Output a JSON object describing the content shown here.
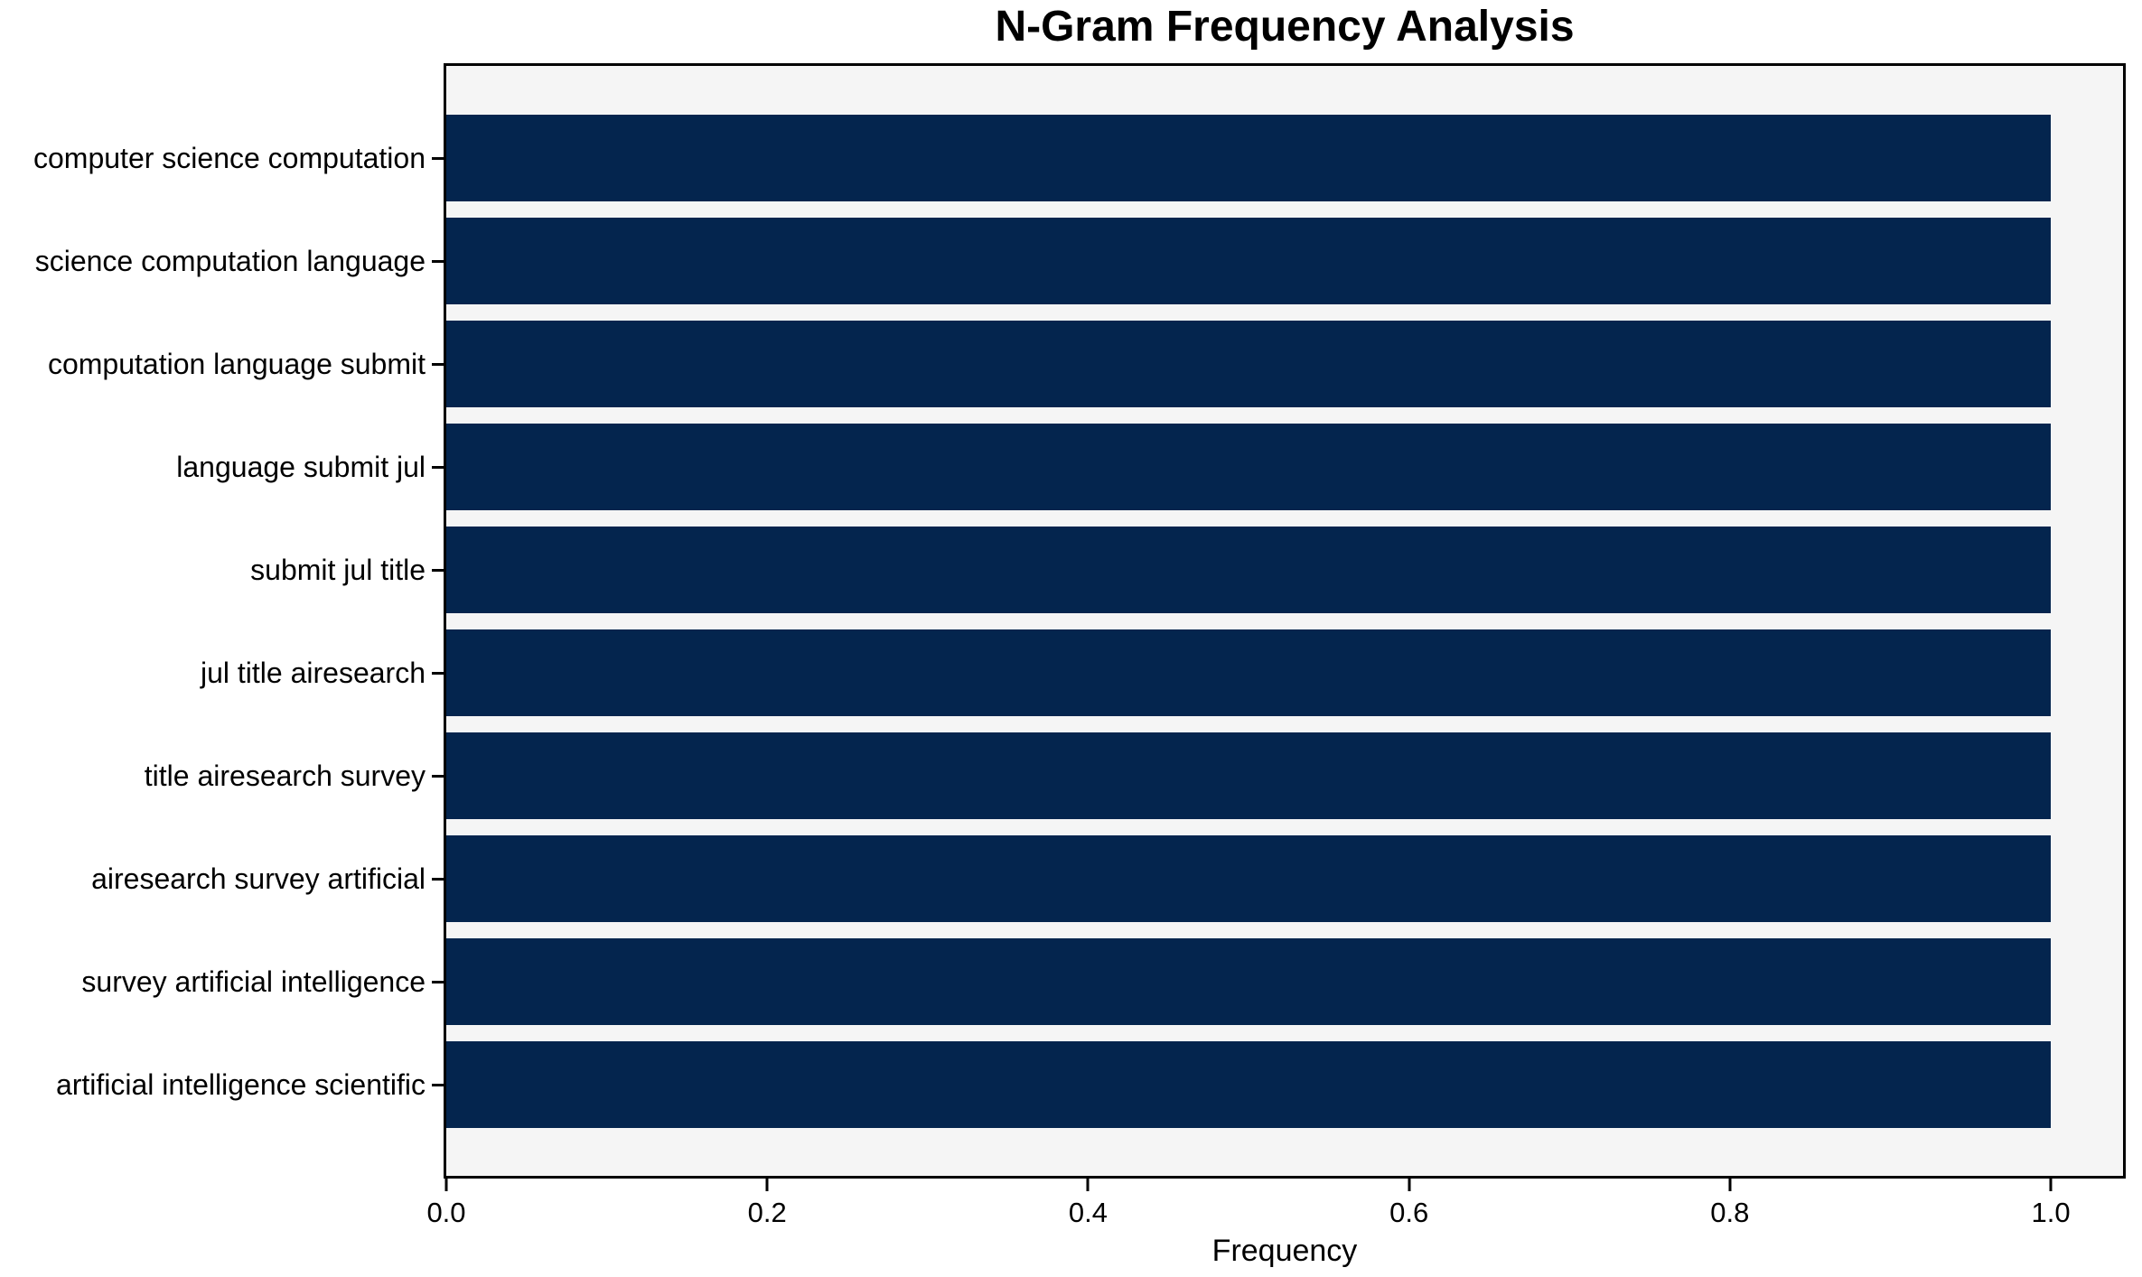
{
  "chart_data": {
    "type": "bar",
    "orientation": "horizontal",
    "title": "N-Gram Frequency Analysis",
    "xlabel": "Frequency",
    "ylabel": "",
    "categories": [
      "computer science computation",
      "science computation language",
      "computation language submit",
      "language submit jul",
      "submit jul title",
      "jul title airesearch",
      "title airesearch survey",
      "airesearch survey artificial",
      "survey artificial intelligence",
      "artificial intelligence scientific"
    ],
    "values": [
      1.0,
      1.0,
      1.0,
      1.0,
      1.0,
      1.0,
      1.0,
      1.0,
      1.0,
      1.0
    ],
    "xlim": [
      0,
      1.045
    ],
    "xticks": [
      {
        "value": 0.0,
        "label": "0.0"
      },
      {
        "value": 0.2,
        "label": "0.2"
      },
      {
        "value": 0.4,
        "label": "0.4"
      },
      {
        "value": 0.6,
        "label": "0.6"
      },
      {
        "value": 0.8,
        "label": "0.8"
      },
      {
        "value": 1.0,
        "label": "1.0"
      }
    ],
    "grid": false,
    "legend": "none",
    "colors": {
      "bar": "#04254e",
      "plot_background": "#f5f5f5",
      "figure_background": "#ffffff",
      "spine": "#000000",
      "text": "#000000"
    }
  }
}
